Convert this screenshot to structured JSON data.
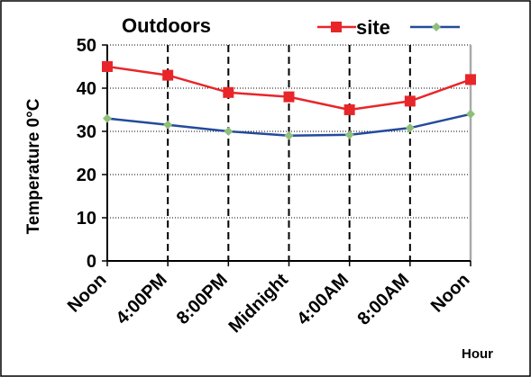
{
  "chart_data": {
    "type": "line",
    "title": "Outdoors",
    "xlabel": "Hour",
    "ylabel": "Temperature 0°C",
    "categories": [
      "Noon",
      "4:00PM",
      "8:00PM",
      "Midnight",
      "4:00AM",
      "8:00AM",
      "Noon"
    ],
    "ylim": [
      0,
      50
    ],
    "yticks": [
      0,
      10,
      20,
      30,
      40,
      50
    ],
    "grid": "vertical dashed at categories, horizontal dotted at y ticks",
    "legend_placement": "top-right",
    "series": [
      {
        "name": "site",
        "values": [
          45,
          43,
          39,
          38,
          35,
          37,
          42
        ],
        "color": "#e8262a",
        "marker": "square"
      },
      {
        "values": [
          33,
          31.5,
          30,
          29,
          29.2,
          30.8,
          34
        ],
        "color": "#244b9a",
        "marker_color": "#8fbf7a",
        "marker": "diamond"
      }
    ]
  }
}
